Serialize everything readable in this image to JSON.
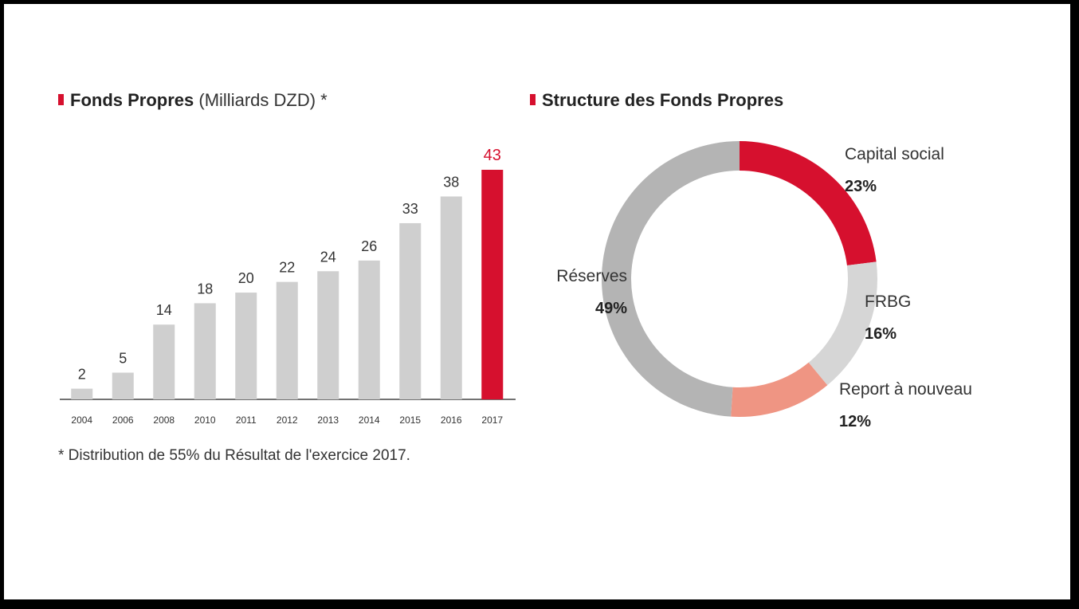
{
  "colors": {
    "bar_default": "#cfcfcf",
    "bar_highlight": "#d6102e",
    "label_default": "#333333",
    "label_highlight": "#d6102e",
    "axis": "#444444"
  },
  "left_panel": {
    "title_bold": "Fonds Propres",
    "title_normal": "(Milliards DZD) *",
    "footnote": "* Distribution de 55% du Résultat de l'exercice 2017."
  },
  "right_panel": {
    "title_bold": "Structure des Fonds Propres"
  },
  "chart_data": [
    {
      "type": "bar",
      "title": "Fonds Propres (Milliards DZD) *",
      "categories": [
        "2004",
        "2006",
        "2008",
        "2010",
        "2011",
        "2012",
        "2013",
        "2014",
        "2015",
        "2016",
        "2017"
      ],
      "values": [
        2,
        5,
        14,
        18,
        20,
        22,
        24,
        26,
        33,
        38,
        43
      ],
      "highlight_index": 10,
      "ylim": [
        0,
        43
      ],
      "grid": false
    },
    {
      "type": "pie",
      "variant": "donut",
      "title": "Structure des Fonds Propres",
      "slices": [
        {
          "label": "Capital social",
          "value": 23,
          "display": "23%",
          "color": "#d6102e"
        },
        {
          "label": "FRBG",
          "value": 16,
          "display": "16%",
          "color": "#d6d6d6"
        },
        {
          "label": "Report à nouveau",
          "value": 12,
          "display": "12%",
          "color": "#ef9583"
        },
        {
          "label": "Réserves",
          "value": 49,
          "display": "49%",
          "color": "#b4b4b4"
        }
      ],
      "start_angle_deg": 0,
      "direction": "clockwise"
    }
  ]
}
